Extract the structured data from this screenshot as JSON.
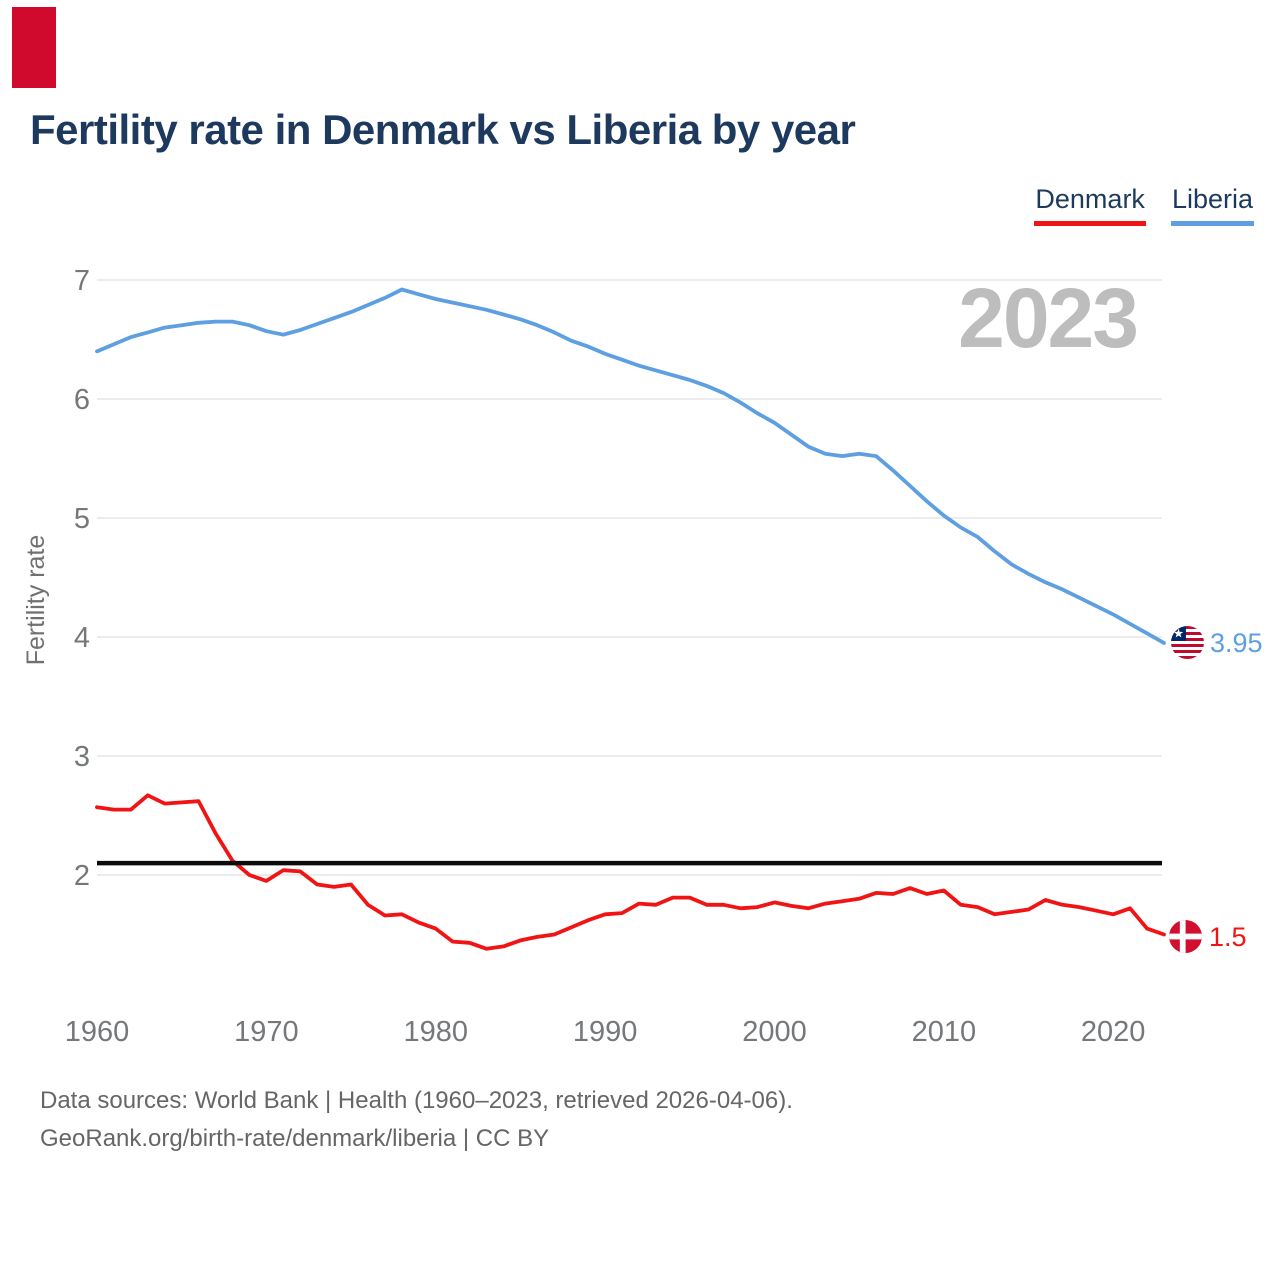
{
  "header": {
    "title": "Fertility rate in Denmark vs Liberia by year"
  },
  "brand_block_color": "#cf0a2c",
  "legend": {
    "items": [
      {
        "label": "Denmark",
        "color": "#f01414"
      },
      {
        "label": "Liberia",
        "color": "#5d9fe0"
      }
    ]
  },
  "watermark": "2023",
  "chart_data": {
    "type": "line",
    "title": "Fertility rate in Denmark vs Liberia by year",
    "ylabel": "Fertility rate",
    "xlabel": "",
    "grid": "horizontal",
    "legend_position": "top-right",
    "yticks": [
      2,
      3,
      4,
      5,
      6,
      7
    ],
    "xticks": [
      1960,
      1970,
      1980,
      1990,
      2000,
      2010,
      2020
    ],
    "ylim": [
      1.0,
      7.2
    ],
    "reference_line": 2.1,
    "years": [
      1960,
      1961,
      1962,
      1963,
      1964,
      1965,
      1966,
      1967,
      1968,
      1969,
      1970,
      1971,
      1972,
      1973,
      1974,
      1975,
      1976,
      1977,
      1978,
      1979,
      1980,
      1981,
      1982,
      1983,
      1984,
      1985,
      1986,
      1987,
      1988,
      1989,
      1990,
      1991,
      1992,
      1993,
      1994,
      1995,
      1996,
      1997,
      1998,
      1999,
      2000,
      2001,
      2002,
      2003,
      2004,
      2005,
      2006,
      2007,
      2008,
      2009,
      2010,
      2011,
      2012,
      2013,
      2014,
      2015,
      2016,
      2017,
      2018,
      2019,
      2020,
      2021,
      2022,
      2023
    ],
    "series": [
      {
        "name": "Liberia",
        "color": "#5d9fe0",
        "values": [
          6.4,
          6.46,
          6.52,
          6.56,
          6.6,
          6.62,
          6.64,
          6.65,
          6.65,
          6.62,
          6.57,
          6.54,
          6.58,
          6.63,
          6.68,
          6.73,
          6.79,
          6.85,
          6.92,
          6.88,
          6.84,
          6.81,
          6.78,
          6.75,
          6.71,
          6.67,
          6.62,
          6.56,
          6.49,
          6.44,
          6.38,
          6.33,
          6.28,
          6.24,
          6.2,
          6.16,
          6.11,
          6.05,
          5.97,
          5.88,
          5.8,
          5.7,
          5.6,
          5.54,
          5.52,
          5.54,
          5.52,
          5.4,
          5.27,
          5.14,
          5.02,
          4.92,
          4.84,
          4.72,
          4.61,
          4.53,
          4.46,
          4.4,
          4.33,
          4.26,
          4.19,
          4.11,
          4.03,
          3.95
        ]
      },
      {
        "name": "Denmark",
        "color": "#f01414",
        "values": [
          2.57,
          2.55,
          2.55,
          2.67,
          2.6,
          2.61,
          2.62,
          2.35,
          2.12,
          2.0,
          1.95,
          2.04,
          2.03,
          1.92,
          1.9,
          1.92,
          1.75,
          1.66,
          1.67,
          1.6,
          1.55,
          1.44,
          1.43,
          1.38,
          1.4,
          1.45,
          1.48,
          1.5,
          1.56,
          1.62,
          1.67,
          1.68,
          1.76,
          1.75,
          1.81,
          1.81,
          1.75,
          1.75,
          1.72,
          1.73,
          1.77,
          1.74,
          1.72,
          1.76,
          1.78,
          1.8,
          1.85,
          1.84,
          1.89,
          1.84,
          1.87,
          1.75,
          1.73,
          1.67,
          1.69,
          1.71,
          1.79,
          1.75,
          1.73,
          1.7,
          1.67,
          1.72,
          1.55,
          1.5
        ]
      }
    ],
    "end_labels": [
      {
        "series": "Liberia",
        "text": "3.95"
      },
      {
        "series": "Denmark",
        "text": "1.5"
      }
    ]
  },
  "footer": {
    "line1": "Data sources: World Bank | Health (1960–2023, retrieved 2026-04-06).",
    "line2": "GeoRank.org/birth-rate/denmark/liberia | CC BY"
  }
}
